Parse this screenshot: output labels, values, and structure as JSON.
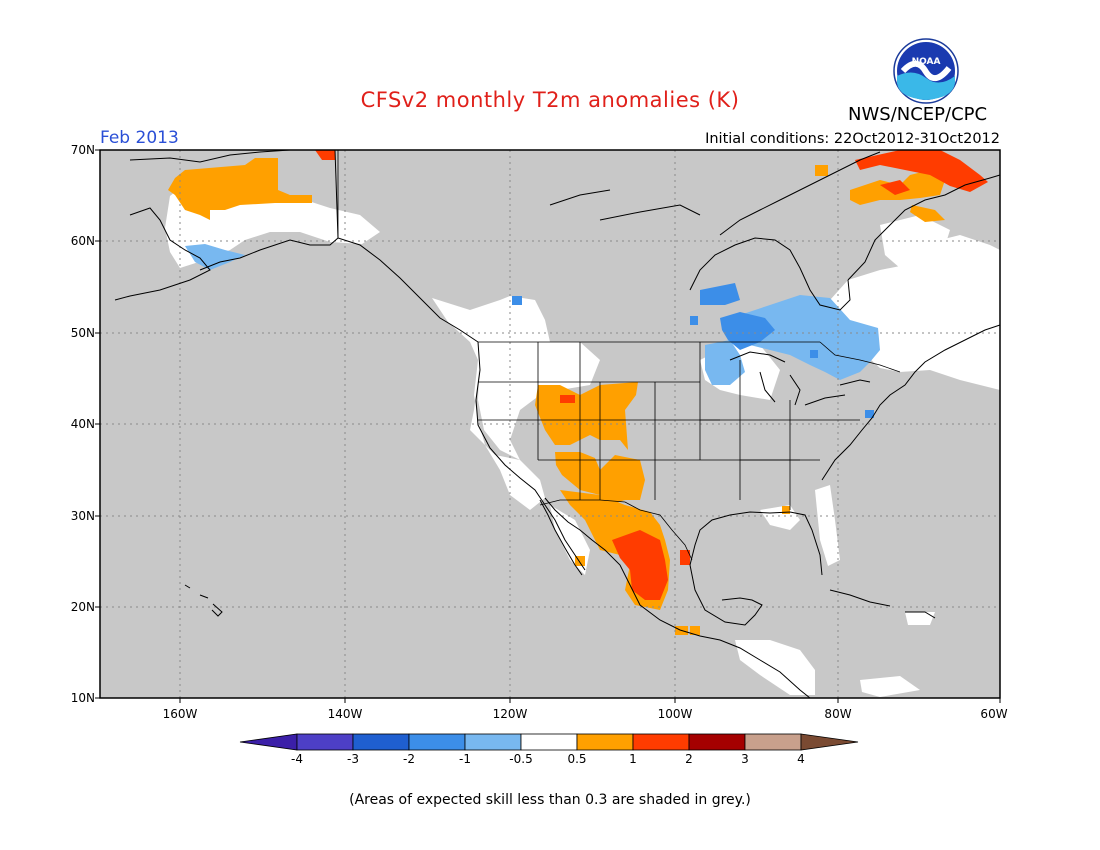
{
  "header": {
    "title": "CFSv2 monthly T2m anomalies (K)",
    "period": "Feb 2013",
    "initial_conditions": "Initial conditions: 22Oct2012-31Oct2012",
    "agency": "NWS/NCEP/CPC"
  },
  "map": {
    "lat_labels": [
      "70N",
      "60N",
      "50N",
      "40N",
      "30N",
      "20N",
      "10N"
    ],
    "lon_labels": [
      "160W",
      "140W",
      "120W",
      "100W",
      "80W",
      "60W"
    ],
    "missing_color": "#c8c8c8",
    "land_neutral_color": "#ffffff"
  },
  "colorbar": {
    "labels": [
      "-4",
      "-3",
      "-2",
      "-1",
      "-0.5",
      "0.5",
      "1",
      "2",
      "3",
      "4"
    ],
    "colors": [
      "#3b1fa8",
      "#4d3fc6",
      "#1f5fd0",
      "#3c8ee8",
      "#78b8f0",
      "#ffffff",
      "#ffa000",
      "#ff3c00",
      "#a50000",
      "#c8a08c",
      "#7a4a32"
    ]
  },
  "footnote": "(Areas of expected skill less than 0.3 are shaded in grey.)"
}
